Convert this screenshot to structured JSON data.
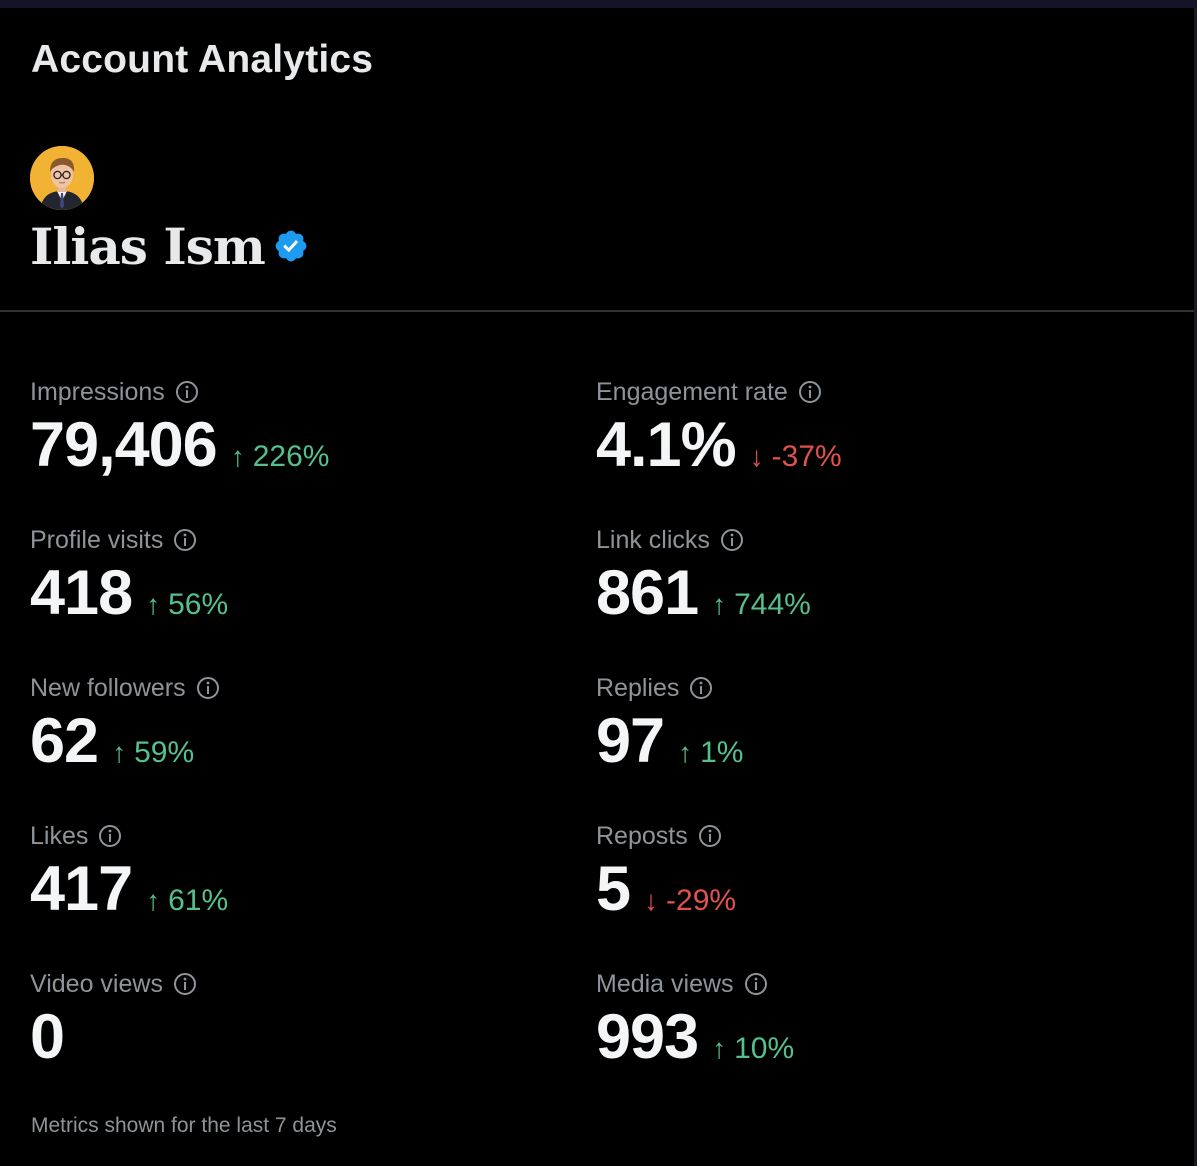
{
  "page": {
    "title": "Account Analytics"
  },
  "profile": {
    "name": "Ilias Ism",
    "verified": true,
    "badge_color": "#1d9bf0"
  },
  "colors": {
    "positive": "#56c08d",
    "negative": "#e0524c"
  },
  "metrics": [
    {
      "label": "Impressions",
      "value": "79,406",
      "direction": "up",
      "arrow": "↑",
      "change": "226%"
    },
    {
      "label": "Engagement rate",
      "value": "4.1%",
      "direction": "down",
      "arrow": "↓",
      "change": "-37%"
    },
    {
      "label": "Profile visits",
      "value": "418",
      "direction": "up",
      "arrow": "↑",
      "change": "56%"
    },
    {
      "label": "Link clicks",
      "value": "861",
      "direction": "up",
      "arrow": "↑",
      "change": "744%"
    },
    {
      "label": "New followers",
      "value": "62",
      "direction": "up",
      "arrow": "↑",
      "change": "59%"
    },
    {
      "label": "Replies",
      "value": "97",
      "direction": "up",
      "arrow": "↑",
      "change": "1%"
    },
    {
      "label": "Likes",
      "value": "417",
      "direction": "up",
      "arrow": "↑",
      "change": "61%"
    },
    {
      "label": "Reposts",
      "value": "5",
      "direction": "down",
      "arrow": "↓",
      "change": "-29%"
    },
    {
      "label": "Video views",
      "value": "0",
      "direction": "none",
      "arrow": "",
      "change": ""
    },
    {
      "label": "Media views",
      "value": "993",
      "direction": "up",
      "arrow": "↑",
      "change": "10%"
    }
  ],
  "footer": {
    "note": "Metrics shown for the last 7 days"
  }
}
